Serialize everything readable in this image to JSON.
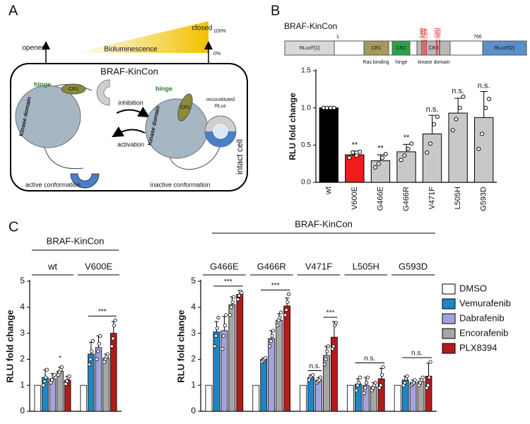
{
  "figure_a": {
    "label": "A",
    "opened": "opened",
    "closed": "closed",
    "scale_top": "100%",
    "scale_bottom": "0%",
    "gradient_label": "Bioluminescence",
    "cell_title": "BRAF-KinCon",
    "left": {
      "hinge": "hinge",
      "cr1": "CR1",
      "domain": "Kinase domain",
      "caption": "active conformation"
    },
    "right": {
      "hinge": "hinge",
      "cr1": "CR1",
      "domain": "Kinase domain",
      "rluc": [
        "reconstituted",
        "RLuc"
      ],
      "caption": "inactive conformation"
    },
    "inhibition": "inhibition",
    "activation": "activation",
    "cell_label": "intact cell"
  },
  "figure_b": {
    "label": "B",
    "title": "BRAF-KinCon",
    "construct": {
      "start": "1",
      "end": "766",
      "domains": [
        {
          "name": "RLucF[1]",
          "color": "#d9d9d9"
        },
        {
          "name": "CR1",
          "color": "#a49a5a"
        },
        {
          "name": "CR2",
          "color": "#2ca24a"
        },
        {
          "name": "CR3",
          "color": "#b9b9b9"
        },
        {
          "name": "RLucF[2]",
          "color": "#5b8fc9"
        }
      ],
      "captions": [
        "Ras binding",
        "hinge",
        "kinase domain"
      ],
      "mutations": [
        "G466",
        "V471",
        "L505",
        "G593",
        "V600"
      ]
    }
  },
  "figure_c": {
    "label": "C"
  },
  "chart_data": [
    {
      "type": "bar",
      "ylabel": "RLU fold change",
      "categories": [
        "wt",
        "V600E",
        "G466E",
        "G466R",
        "V471F",
        "L505H",
        "G593D"
      ],
      "values": [
        1.0,
        0.37,
        0.29,
        0.41,
        0.65,
        0.93,
        0.87
      ],
      "errors": [
        0,
        0.05,
        0.08,
        0.1,
        0.25,
        0.2,
        0.35
      ],
      "points": [
        [
          1,
          1,
          1,
          1
        ],
        [
          0.33,
          0.4,
          0.36,
          0.41
        ],
        [
          0.2,
          0.25,
          0.33,
          0.38
        ],
        [
          0.3,
          0.36,
          0.45,
          0.52
        ],
        [
          0.4,
          0.52,
          0.78,
          0.88
        ],
        [
          0.7,
          0.85,
          1.0,
          1.15
        ],
        [
          0.45,
          0.65,
          1.0,
          1.12
        ]
      ],
      "colors": [
        "#000000",
        "#ee1c1c",
        "#c8c8c8",
        "#c8c8c8",
        "#c8c8c8",
        "#c8c8c8",
        "#c8c8c8"
      ],
      "ylim": [
        0,
        1.5
      ],
      "yticks": [
        {
          "value": 0,
          "label": "0.0"
        },
        {
          "value": 0.5,
          "label": "0.5"
        },
        {
          "value": 1,
          "label": "1.0"
        },
        {
          "value": 1.5,
          "label": "1.5"
        }
      ],
      "annotations": [
        {
          "label": "**",
          "category": "V600E"
        },
        {
          "label": "**",
          "category": "G466E"
        },
        {
          "label": "**",
          "category": "G466R"
        },
        {
          "label": "n.s.",
          "category": "V471F"
        },
        {
          "label": "n.s.",
          "category": "L505H"
        },
        {
          "label": "n.s.",
          "category": "G593D"
        }
      ]
    },
    {
      "type": "grouped_bar",
      "title": "BRAF-KinCon",
      "ylabel": "RLU fold change",
      "categories": [
        "wt",
        "V600E"
      ],
      "series": [
        {
          "color": "#ffffff",
          "values": [
            1,
            1
          ],
          "errors": [
            0,
            0
          ]
        },
        {
          "color": "#1f86c6",
          "values": [
            1.3,
            2.2
          ],
          "errors": [
            0.3,
            0.45
          ],
          "points": [
            [
              1.0,
              1.15,
              1.3,
              1.6
            ],
            [
              1.8,
              2.0,
              2.3,
              2.7
            ]
          ]
        },
        {
          "color": "#a3a3dc",
          "values": [
            1.25,
            2.45
          ],
          "errors": [
            0.2,
            0.45
          ],
          "points": [
            [
              1.1,
              1.2,
              1.35,
              1.4
            ],
            [
              2.0,
              2.3,
              2.6,
              2.9
            ]
          ]
        },
        {
          "color": "#a6a6a6",
          "values": [
            1.55,
            2.05
          ],
          "errors": [
            0.15,
            0.15
          ],
          "points": [
            [
              1.4,
              1.5,
              1.6,
              1.7
            ],
            [
              1.9,
              2.0,
              2.1,
              2.2
            ]
          ]
        },
        {
          "color": "#b01c1c",
          "values": [
            1.2,
            3.0
          ],
          "errors": [
            0.15,
            0.45
          ],
          "points": [
            [
              1.05,
              1.15,
              1.3,
              1.35
            ],
            [
              2.5,
              2.8,
              3.3,
              3.5
            ]
          ]
        }
      ],
      "ylim": [
        0,
        5
      ],
      "yticks": [
        0,
        1,
        2,
        3,
        4,
        5
      ],
      "annotations": [
        {
          "label": "*",
          "category": "wt",
          "span": [
            3,
            3
          ]
        },
        {
          "label": "***",
          "category": "V600E",
          "span": [
            1,
            4
          ]
        }
      ]
    },
    {
      "type": "grouped_bar",
      "title": "BRAF-KinCon",
      "ylabel": "RLU fold change",
      "categories": [
        "G466E",
        "G466R",
        "V471F",
        "L505H",
        "G593D"
      ],
      "series": [
        {
          "name": "DMSO",
          "color": "#ffffff",
          "values": [
            1,
            1,
            1,
            1,
            1
          ],
          "errors": [
            0,
            0,
            0,
            0,
            0
          ]
        },
        {
          "name": "Vemurafenib",
          "color": "#1f86c6",
          "values": [
            3.05,
            2.0,
            1.3,
            1.05,
            1.2
          ],
          "errors": [
            0.4,
            0.05,
            0.1,
            0.2,
            0.15
          ],
          "points": [
            [
              2.5,
              2.9,
              3.2,
              3.6
            ],
            [
              1.9,
              1.95,
              2.0,
              2.05
            ],
            [
              1.2,
              1.3,
              1.35,
              1.4
            ],
            [
              0.8,
              1.0,
              1.1,
              1.3
            ],
            [
              1.0,
              1.1,
              1.25,
              1.35
            ]
          ]
        },
        {
          "name": "Dabrafenib",
          "color": "#a3a3dc",
          "values": [
            3.1,
            2.8,
            1.2,
            1.0,
            1.1
          ],
          "errors": [
            0.55,
            0.3,
            0.1,
            0.3,
            0.1
          ],
          "points": [
            [
              2.4,
              2.9,
              3.3,
              3.7
            ],
            [
              2.5,
              2.7,
              2.9,
              3.1
            ],
            [
              1.1,
              1.15,
              1.2,
              1.3
            ],
            [
              0.7,
              0.9,
              1.1,
              1.3
            ],
            [
              1.0,
              1.05,
              1.1,
              1.2
            ]
          ]
        },
        {
          "name": "Encorafenib",
          "color": "#a6a6a6",
          "values": [
            4.1,
            3.5,
            2.15,
            0.95,
            1.15
          ],
          "errors": [
            0.3,
            0.25,
            0.35,
            0.15,
            0.1
          ],
          "points": [
            [
              3.7,
              4.0,
              4.2,
              4.4
            ],
            [
              3.3,
              3.5,
              3.6,
              3.8
            ],
            [
              1.8,
              2.0,
              2.3,
              2.5
            ],
            [
              0.8,
              0.9,
              1.0,
              1.1
            ],
            [
              1.0,
              1.1,
              1.2,
              1.3
            ]
          ]
        },
        {
          "name": "PLX8394",
          "color": "#b01c1c",
          "values": [
            4.5,
            4.05,
            2.85,
            1.25,
            1.35
          ],
          "errors": [
            0.15,
            0.3,
            0.6,
            0.4,
            0.5
          ],
          "points": [
            [
              4.3,
              4.45,
              4.6,
              4.55
            ],
            [
              3.7,
              3.9,
              4.2,
              4.5
            ],
            [
              2.4,
              2.5,
              3.3,
              3.4
            ],
            [
              0.9,
              1.0,
              1.4,
              1.7
            ],
            [
              0.9,
              1.0,
              1.3,
              1.9
            ]
          ]
        }
      ],
      "ylim": [
        0,
        5
      ],
      "yticks": [
        0,
        1,
        2,
        3,
        4,
        5
      ],
      "legend": "right",
      "annotations": [
        {
          "label": "***",
          "category": "G466E",
          "span": [
            1,
            4
          ]
        },
        {
          "label": "***",
          "category": "G466R",
          "span": [
            1,
            4
          ]
        },
        {
          "label": "n.s.",
          "category": "V471F",
          "span": [
            1,
            2
          ]
        },
        {
          "label": "***",
          "category": "V471F",
          "span": [
            3,
            4
          ]
        },
        {
          "label": "n.s.",
          "category": "L505H",
          "span": [
            1,
            4
          ]
        },
        {
          "label": "n.s.",
          "category": "G593D",
          "span": [
            1,
            4
          ]
        }
      ]
    }
  ]
}
